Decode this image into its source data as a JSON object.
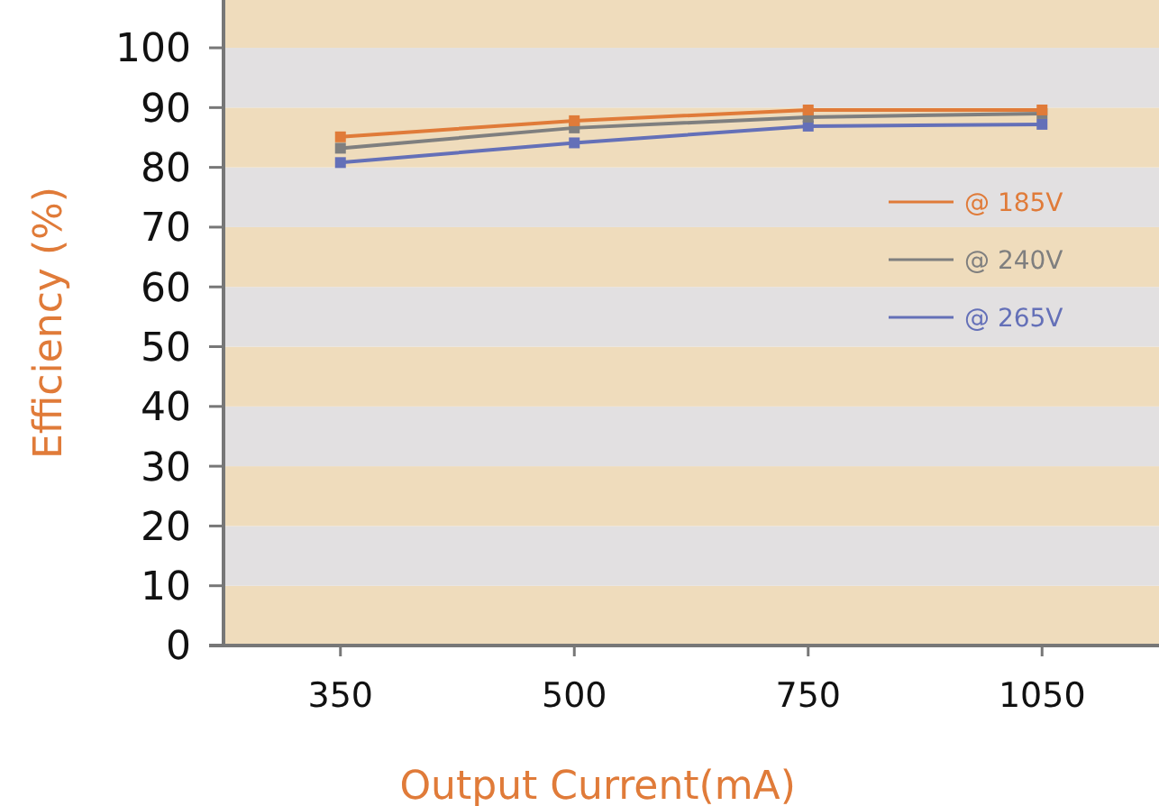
{
  "chart_data": {
    "type": "line",
    "xlabel": "Output Current(mA)",
    "ylabel": "Efficiency (%)",
    "categories": [
      "350",
      "500",
      "750",
      "1050"
    ],
    "series": [
      {
        "name": "@ 185V",
        "color": "#e07b39",
        "values": [
          85.1,
          87.8,
          89.6,
          89.6
        ]
      },
      {
        "name": "@ 240V",
        "color": "#7f7f7f",
        "values": [
          83.2,
          86.6,
          88.4,
          89
        ]
      },
      {
        "name": "@ 265V",
        "color": "#6470b8",
        "values": [
          80.8,
          84.1,
          86.9,
          87.2
        ]
      }
    ],
    "ylim": [
      0,
      108
    ],
    "yticks": [
      0,
      10,
      20,
      30,
      40,
      50,
      60,
      70,
      80,
      90,
      100
    ],
    "bands": [
      {
        "axis": "y",
        "from": 0,
        "to": 10,
        "color": "#efdcbc"
      },
      {
        "axis": "y",
        "from": 10,
        "to": 20,
        "color": "#e2e0e1"
      },
      {
        "axis": "y",
        "from": 20,
        "to": 30,
        "color": "#efdcbc"
      },
      {
        "axis": "y",
        "from": 30,
        "to": 40,
        "color": "#e2e0e1"
      },
      {
        "axis": "y",
        "from": 40,
        "to": 50,
        "color": "#efdcbc"
      },
      {
        "axis": "y",
        "from": 50,
        "to": 60,
        "color": "#e2e0e1"
      },
      {
        "axis": "y",
        "from": 60,
        "to": 70,
        "color": "#efdcbc"
      },
      {
        "axis": "y",
        "from": 70,
        "to": 80,
        "color": "#e2e0e1"
      },
      {
        "axis": "y",
        "from": 80,
        "to": 90,
        "color": "#efdcbc"
      },
      {
        "axis": "y",
        "from": 90,
        "to": 100,
        "color": "#e2e0e1"
      },
      {
        "axis": "y",
        "from": 100,
        "to": 108,
        "color": "#efdcbc"
      }
    ],
    "legend": "right",
    "marker": "square",
    "line_style": "solid",
    "grid": false
  }
}
